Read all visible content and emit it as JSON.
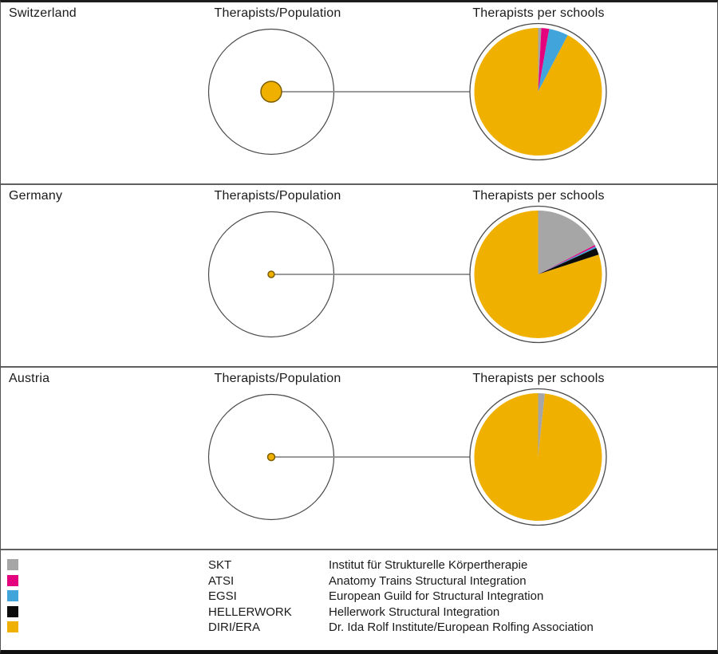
{
  "rows": [
    {
      "country": "Switzerland",
      "left_title": "Therapists/Population",
      "right_title": "Therapists per schools"
    },
    {
      "country": "Germany",
      "left_title": "Therapists/Population",
      "right_title": "Therapists per schools"
    },
    {
      "country": "Austria",
      "left_title": "Therapists/Population",
      "right_title": "Therapists per schools"
    }
  ],
  "legend": {
    "items": [
      {
        "abbr": "SKT",
        "name": "Institut für Strukturelle Körpertherapie",
        "color": "#a6a6a6"
      },
      {
        "abbr": "ATSI",
        "name": "Anatomy Trains Structural Integration",
        "color": "#e5007d"
      },
      {
        "abbr": "EGSI",
        "name": "European Guild for Structural Integration",
        "color": "#41a5dc"
      },
      {
        "abbr": "HELLERWORK",
        "name": "Hellerwork Structural Integration",
        "color": "#0b0b0b"
      },
      {
        "abbr": "DIRI/ERA",
        "name": "Dr. Ida Rolf Institute/European Rolfing Association",
        "color": "#f0b000"
      }
    ]
  },
  "style": {
    "circle_outline_color": "#4a4a4a",
    "connector_color": "#8c8c8c",
    "dot_fill": "#f0b000",
    "dot_stroke": "#7c5e00"
  },
  "chart_data": [
    {
      "type": "pie",
      "country": "Switzerland",
      "title": "Therapists per schools",
      "categories": [
        "SKT",
        "ATSI",
        "EGSI",
        "HELLERWORK",
        "DIRI/ERA"
      ],
      "values": [
        0.8,
        2.0,
        4.9,
        0,
        92.3
      ],
      "unit": "% of therapists (estimated from pie angles)",
      "colors": [
        "#a6a6a6",
        "#e5007d",
        "#41a5dc",
        "#0b0b0b",
        "#f0b000"
      ],
      "start_angle_deg": 0,
      "direction": "clockwise"
    },
    {
      "type": "pie",
      "country": "Germany",
      "title": "Therapists per schools",
      "categories": [
        "SKT",
        "ATSI",
        "EGSI",
        "HELLERWORK",
        "DIRI/ERA"
      ],
      "values": [
        17.4,
        0.4,
        0.4,
        1.8,
        80.0
      ],
      "unit": "% of therapists (estimated from pie angles)",
      "colors": [
        "#a6a6a6",
        "#e5007d",
        "#41a5dc",
        "#0b0b0b",
        "#f0b000"
      ],
      "start_angle_deg": 0,
      "direction": "clockwise"
    },
    {
      "type": "pie",
      "country": "Austria",
      "title": "Therapists per schools",
      "categories": [
        "SKT",
        "ATSI",
        "EGSI",
        "HELLERWORK",
        "DIRI/ERA"
      ],
      "values": [
        1.7,
        0,
        0,
        0,
        98.3
      ],
      "unit": "% of therapists (estimated from pie angles)",
      "colors": [
        "#a6a6a6",
        "#e5007d",
        "#41a5dc",
        "#0b0b0b",
        "#f0b000"
      ],
      "start_angle_deg": 0,
      "direction": "clockwise"
    },
    {
      "type": "bubble",
      "title": "Therapists/Population",
      "categories": [
        "Switzerland",
        "Germany",
        "Austria"
      ],
      "dot_radius_px": [
        13,
        4,
        4.5
      ],
      "outer_circle_radius_px": 78.5,
      "note": "filled dot area relative to outer circle represents therapists per population"
    }
  ]
}
